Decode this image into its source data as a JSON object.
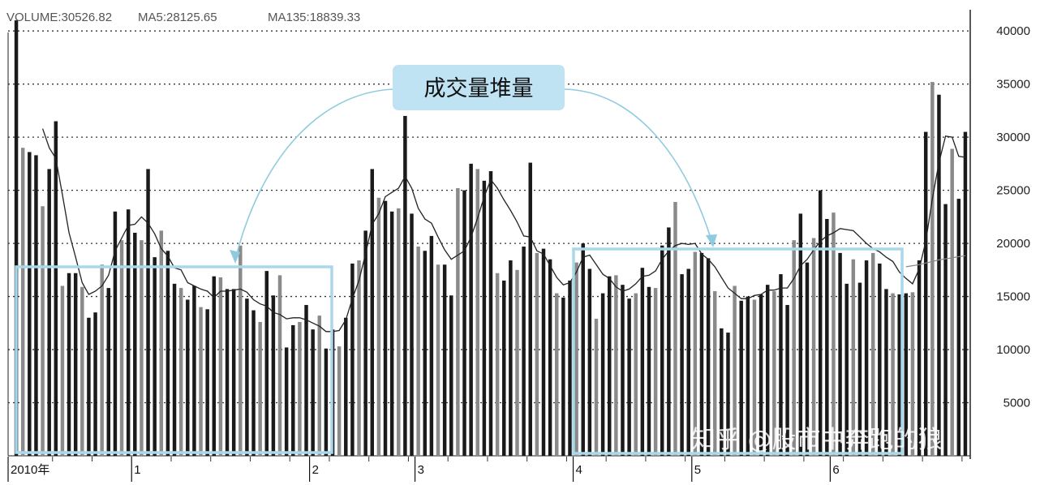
{
  "header": {
    "volume": "VOLUME:30526.82",
    "ma5": "MA5:28125.65",
    "ma135": "MA135:18839.33"
  },
  "annotation": {
    "text": "成交量堆量"
  },
  "watermark": {
    "text": "知乎 @股市中奔跑的狼"
  },
  "colors": {
    "bar_dark": "#1a1a1a",
    "bar_light": "#8a8a8a",
    "ma_line": "#222222",
    "highlight_box": "#a8d8ea",
    "callout_bg": "#bfe3f3",
    "arrow": "#8fcbe0",
    "grid": "#333333"
  },
  "chart_data": {
    "type": "bar",
    "title": "",
    "xlabel": "",
    "ylabel": "",
    "ylim": [
      0,
      42000
    ],
    "yticks": [
      5000,
      10000,
      15000,
      20000,
      25000,
      30000,
      35000,
      40000
    ],
    "grid": true,
    "legend": "top-left",
    "x_ticks": [
      {
        "label": "2010年",
        "index": 0
      },
      {
        "label": "1",
        "index": 18
      },
      {
        "label": "2",
        "index": 45
      },
      {
        "label": "3",
        "index": 61
      },
      {
        "label": "4",
        "index": 85
      },
      {
        "label": "5",
        "index": 103
      },
      {
        "label": "6",
        "index": 124
      }
    ],
    "volume": [
      41000,
      29000,
      28600,
      28300,
      23500,
      27000,
      31500,
      16000,
      17200,
      17200,
      15900,
      13000,
      13500,
      18000,
      15800,
      23000,
      20300,
      23200,
      21000,
      20300,
      27000,
      18700,
      21200,
      19300,
      16200,
      15800,
      14700,
      16000,
      14000,
      13800,
      16900,
      16800,
      15700,
      15700,
      19800,
      14800,
      13700,
      12600,
      17400,
      15100,
      17000,
      10200,
      12300,
      12600,
      14200,
      11900,
      13200,
      10100,
      11900,
      10300,
      13000,
      18100,
      18400,
      21200,
      27000,
      24300,
      24000,
      23000,
      23300,
      32000,
      22800,
      19700,
      19300,
      20700,
      18000,
      18000,
      15100,
      25200,
      25000,
      27500,
      27000,
      25900,
      26800,
      17200,
      16500,
      18400,
      17500,
      19700,
      27600,
      19100,
      19500,
      18500,
      15300,
      14900,
      16500,
      18200,
      20000,
      17600,
      12900,
      15300,
      16900,
      17000,
      16100,
      14800,
      15300,
      17700,
      15900,
      15800,
      19800,
      21500,
      23900,
      17100,
      17600,
      19200,
      19100,
      18600,
      15500,
      12000,
      11600,
      16000,
      14600,
      15000,
      14700,
      15200,
      16100,
      15500,
      17100,
      14200,
      20300,
      22800,
      18200,
      20500,
      25000,
      22300,
      22900,
      19100,
      16200,
      18500,
      16300,
      18400,
      19100,
      18100,
      15700,
      15300,
      15200,
      15300,
      15400,
      18400,
      30500,
      35200,
      34000,
      23700,
      28900,
      24200,
      30500
    ],
    "ma5": [
      null,
      null,
      null,
      null,
      30800,
      29000,
      28000,
      24600,
      21000,
      18700,
      16300,
      15200,
      15500,
      16000,
      17000,
      19300,
      20500,
      21700,
      21800,
      22500,
      21900,
      20900,
      19500,
      18800,
      17700,
      17500,
      16300,
      16000,
      15700,
      15500,
      14900,
      15500,
      15500,
      15600,
      15700,
      15400,
      14700,
      14300,
      14100,
      13500,
      13300,
      12900,
      13000,
      13000,
      12800,
      12500,
      12200,
      11700,
      11700,
      11800,
      12800,
      14800,
      16500,
      19000,
      21800,
      22800,
      24400,
      24800,
      25200,
      26300,
      25200,
      23300,
      22300,
      21900,
      20600,
      19400,
      18500,
      18900,
      19300,
      20600,
      22400,
      24400,
      26000,
      25200,
      24100,
      23100,
      22000,
      20700,
      20600,
      19300,
      19000,
      17900,
      16800,
      16100,
      16300,
      17300,
      18700,
      18900,
      18000,
      17100,
      16700,
      15900,
      15500,
      15700,
      16200,
      16900,
      17000,
      17400,
      18500,
      19300,
      19800,
      20000,
      19900,
      20000,
      19000,
      18500,
      17800,
      16800,
      15800,
      15300,
      14800,
      14800,
      15100,
      15200,
      15600,
      15600,
      15800,
      15800,
      16700,
      17900,
      18500,
      19400,
      20200,
      20700,
      21000,
      21400,
      21300,
      21200,
      20600,
      20000,
      19500,
      19200,
      18700,
      18300,
      17300,
      16700,
      16200,
      17600,
      20200,
      24200,
      27600,
      30100,
      30000,
      28200,
      28100
    ],
    "ma135_tail": [
      17800,
      17900,
      18000,
      18150,
      18300,
      18450,
      18550,
      18650,
      18750,
      18839
    ]
  }
}
